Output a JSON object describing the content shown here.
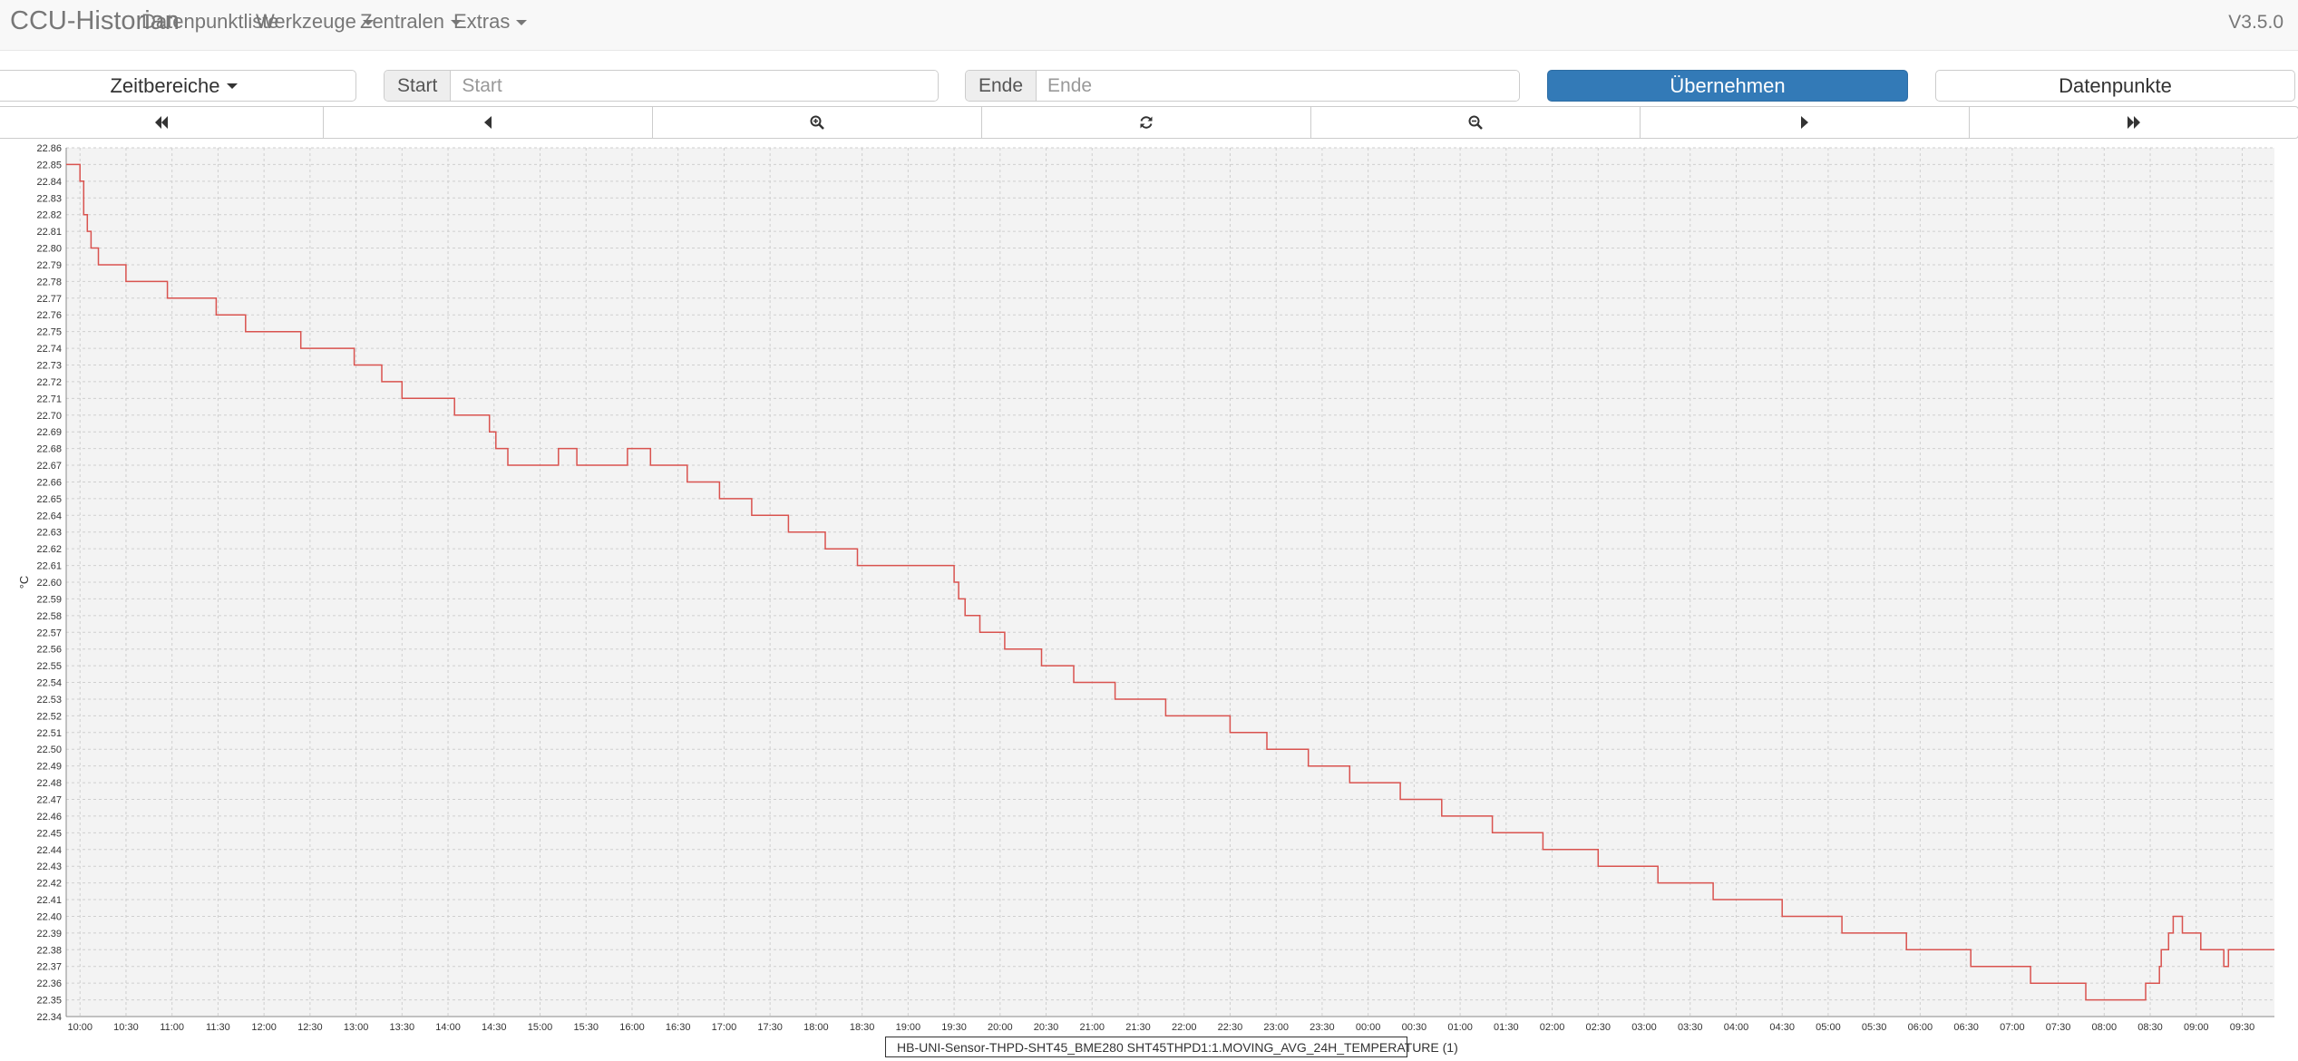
{
  "navbar": {
    "brand": "CCU-Historian",
    "items": [
      "Datenpunktliste",
      "Werkzeuge",
      "Zentralen",
      "Extras"
    ],
    "version": "V3.5.0"
  },
  "toolbar": {
    "zeitbereiche_label": "Zeitbereiche",
    "start_label": "Start",
    "start_placeholder": "Start",
    "ende_label": "Ende",
    "ende_placeholder": "Ende",
    "apply_label": "Übernehmen",
    "datapoints_label": "Datenpunkte"
  },
  "navigation": {
    "buttons": [
      "fast-backward-icon",
      "step-backward-icon",
      "zoom-in-icon",
      "refresh-icon",
      "zoom-out-icon",
      "step-forward-icon",
      "fast-forward-icon"
    ]
  },
  "colors": {
    "primary": "#337ab7",
    "series": "#d9534f",
    "plot_bg": "#f3f3f3"
  },
  "chart_data": {
    "type": "line",
    "step": true,
    "ylabel": "°C",
    "ylim": [
      22.34,
      22.86
    ],
    "ytick_step": 0.01,
    "xlim": [
      9.85,
      33.85
    ],
    "xtick_start": 10,
    "xtick_step": 0.5,
    "xtick_labels": [
      "10:00",
      "10:30",
      "11:00",
      "11:30",
      "12:00",
      "12:30",
      "13:00",
      "13:30",
      "14:00",
      "14:30",
      "15:00",
      "15:30",
      "16:00",
      "16:30",
      "17:00",
      "17:30",
      "18:00",
      "18:30",
      "19:00",
      "19:30",
      "20:00",
      "20:30",
      "21:00",
      "21:30",
      "22:00",
      "22:30",
      "23:00",
      "23:30",
      "00:00",
      "00:30",
      "01:00",
      "01:30",
      "02:00",
      "02:30",
      "03:00",
      "03:30",
      "04:00",
      "04:30",
      "05:00",
      "05:30",
      "06:00",
      "06:30",
      "07:00",
      "07:30",
      "08:00",
      "08:30",
      "09:00",
      "09:30"
    ],
    "legend_position": "bottom-center",
    "grid": true,
    "series": [
      {
        "name": "HB-UNI-Sensor-THPD-SHT45_BME280 SHT45THPD1:1.MOVING_AVG_24H_TEMPERATURE (1)",
        "x": [
          9.85,
          10.0,
          10.04,
          10.08,
          10.12,
          10.2,
          10.5,
          10.95,
          11.48,
          11.8,
          12.4,
          12.98,
          13.28,
          13.5,
          14.07,
          14.45,
          14.52,
          14.65,
          15.2,
          15.4,
          15.95,
          16.2,
          16.6,
          16.95,
          17.3,
          17.7,
          18.1,
          18.45,
          18.85,
          19.5,
          19.55,
          19.62,
          19.78,
          20.05,
          20.45,
          20.8,
          21.25,
          21.8,
          22.5,
          22.9,
          23.35,
          23.8,
          24.35,
          24.8,
          25.35,
          25.9,
          26.5,
          27.15,
          27.75,
          28.5,
          29.15,
          29.85,
          30.55,
          31.2,
          31.8,
          32.45,
          32.6,
          32.62,
          32.7,
          32.75,
          32.85,
          33.05,
          33.3,
          33.35,
          33.85
        ],
        "y": [
          22.85,
          22.84,
          22.82,
          22.81,
          22.8,
          22.79,
          22.78,
          22.77,
          22.76,
          22.75,
          22.74,
          22.73,
          22.72,
          22.71,
          22.7,
          22.69,
          22.68,
          22.67,
          22.68,
          22.67,
          22.68,
          22.67,
          22.66,
          22.65,
          22.64,
          22.63,
          22.62,
          22.61,
          22.61,
          22.6,
          22.59,
          22.58,
          22.57,
          22.56,
          22.55,
          22.54,
          22.53,
          22.52,
          22.51,
          22.5,
          22.49,
          22.48,
          22.47,
          22.46,
          22.45,
          22.44,
          22.43,
          22.42,
          22.41,
          22.4,
          22.39,
          22.38,
          22.37,
          22.36,
          22.35,
          22.36,
          22.37,
          22.38,
          22.39,
          22.4,
          22.39,
          22.38,
          22.37,
          22.38,
          22.38
        ]
      }
    ]
  }
}
